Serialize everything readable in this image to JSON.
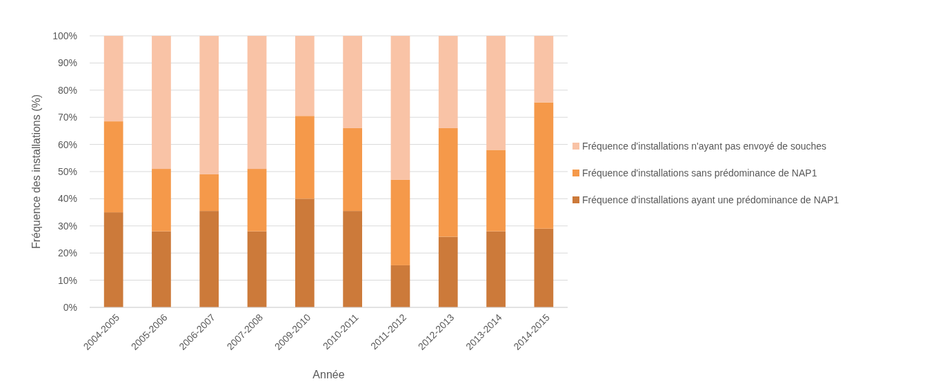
{
  "chart_data": {
    "type": "bar",
    "stacked": true,
    "xlabel": "Année",
    "ylabel": "Fréquence des installations (%)",
    "categories": [
      "2004-2005",
      "2005-2006",
      "2006-2007",
      "2007-2008",
      "2009-2010",
      "2010-2011",
      "2011-2012",
      "2012-2013",
      "2013-2014",
      "2014-2015"
    ],
    "series": [
      {
        "name": "Fréquence d'installations ayant une prédominance de NAP1",
        "color": "#cc7a3a",
        "values": [
          35,
          28,
          35.5,
          28,
          40,
          35.5,
          15.5,
          26,
          28,
          29
        ]
      },
      {
        "name": "Fréquence d'installations sans prédominance de NAP1",
        "color": "#f5994a",
        "values": [
          33.5,
          23,
          13.5,
          23,
          30.5,
          30.5,
          31.5,
          40,
          30,
          46.5
        ]
      },
      {
        "name": "Fréquence d'installations n'ayant pas envoyé de souches",
        "color": "#f9c3a6",
        "values": [
          31.5,
          49,
          51,
          49,
          29.5,
          34,
          53,
          34,
          42,
          24.5
        ]
      }
    ],
    "ylim": [
      0,
      100
    ],
    "yticks": [
      {
        "value": 0,
        "label": "0%"
      },
      {
        "value": 10,
        "label": "10%"
      },
      {
        "value": 20,
        "label": "20%"
      },
      {
        "value": 30,
        "label": "30%"
      },
      {
        "value": 40,
        "label": "40%"
      },
      {
        "value": 50,
        "label": "50%"
      },
      {
        "value": 60,
        "label": "60%"
      },
      {
        "value": 70,
        "label": "70%"
      },
      {
        "value": 80,
        "label": "80%"
      },
      {
        "value": 90,
        "label": "90%"
      },
      {
        "value": 100,
        "label": "100%"
      }
    ],
    "grid": "y",
    "legend": "right"
  }
}
